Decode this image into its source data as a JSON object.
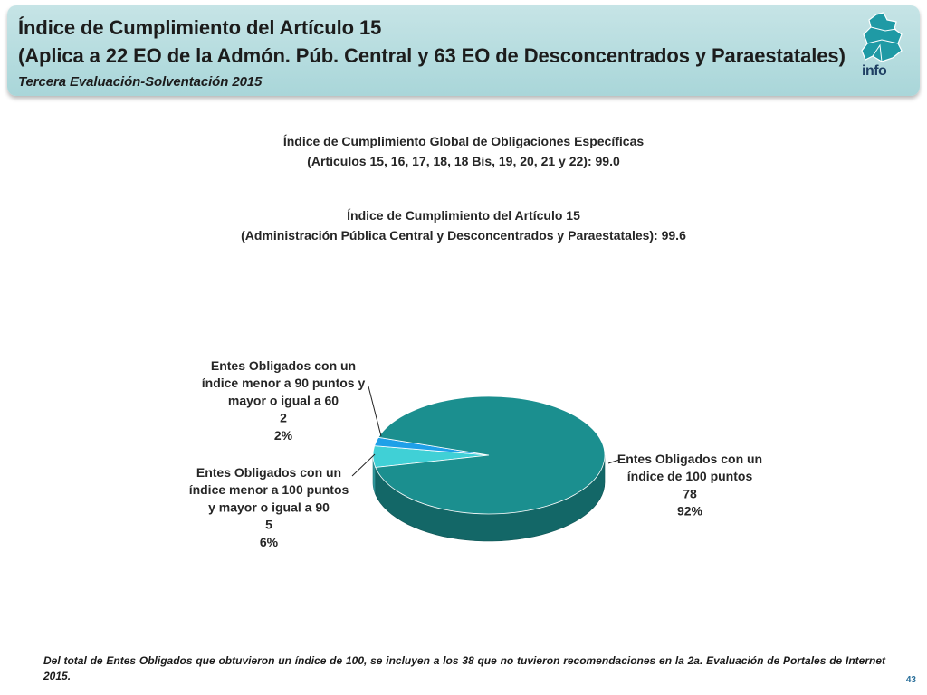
{
  "header": {
    "title_line1": "Índice de Cumplimiento del Artículo 15",
    "title_line2": "(Aplica a 22 EO de la Admón. Púb. Central y 63 EO de Desconcentrados y Paraestatales)",
    "subtitle": "Tercera Evaluación-Solventación 2015",
    "logo_text": "info"
  },
  "summary": {
    "global_line1": "Índice de Cumplimiento Global de Obligaciones Específicas",
    "global_line2": "(Artículos 15, 16, 17, 18, 18 Bis, 19, 20, 21 y 22): 99.0",
    "art15_line1": "Índice de Cumplimiento del Artículo 15",
    "art15_line2": "(Administración Pública Central y Desconcentrados y Paraestatales): 99.6"
  },
  "chart_data": {
    "type": "pie",
    "three_d": true,
    "slices": [
      {
        "label_lines": [
          "Entes Obligados con un",
          "índice de 100 puntos"
        ],
        "count": 78,
        "count_text": "78",
        "percent_text": "92%",
        "color": "#1b8f8f"
      },
      {
        "label_lines": [
          "Entes Obligados con un",
          "índice  menor a 100 puntos",
          "y mayor o igual a 90"
        ],
        "count": 5,
        "count_text": "5",
        "percent_text": "6%",
        "color": "#40d0d6"
      },
      {
        "label_lines": [
          "Entes Obligados con un",
          "índice menor a 90 puntos y",
          "mayor o igual a 60"
        ],
        "count": 2,
        "count_text": "2",
        "percent_text": "2%",
        "color": "#1fa0e8"
      }
    ]
  },
  "footer": {
    "note": "Del total de Entes Obligados que obtuvieron un índice de 100, se incluyen a los 38 que no tuvieron recomendaciones en la 2a. Evaluación de Portales de Internet 2015.",
    "page_number": "43"
  }
}
